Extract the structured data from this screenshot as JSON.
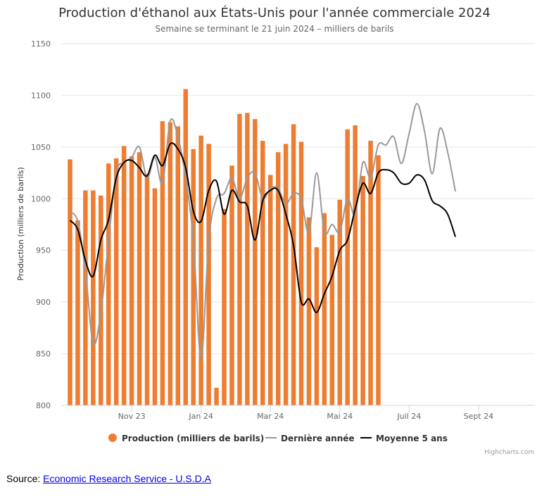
{
  "title": "Production d'éthanol aux États-Unis pour l'année commerciale 2024",
  "subtitle": "Semaine se terminant le 21 juin 2024 – milliers de barils",
  "credits": "Highcharts.com",
  "source": {
    "label": "Source:",
    "link_text": "Economic Research Service - U.S.D.A"
  },
  "colors": {
    "production": "#ed7d31",
    "last_year": "#999999",
    "avg5": "#000000"
  },
  "chart_data": {
    "type": "bar",
    "ylabel": "Production (milliers de barils)",
    "ylim": [
      800,
      1150
    ],
    "yticks": [
      800,
      850,
      900,
      950,
      1000,
      1050,
      1100,
      1150
    ],
    "xtick_labels": [
      "Nov 23",
      "Jan 24",
      "Mar 24",
      "Mai 24",
      "Juil 24",
      "Sept 24"
    ],
    "xtick_weeks": [
      8,
      17,
      26,
      35,
      44,
      53
    ],
    "legend_position": "bottom",
    "grid": true,
    "series": [
      {
        "name": "Production (milliers de barils)",
        "type": "column",
        "values": [
          1038,
          979,
          1008,
          1008,
          1003,
          1034,
          1039,
          1051,
          1041,
          1045,
          1024,
          1010,
          1075,
          1074,
          1070,
          1106,
          1048,
          1061,
          1053,
          817,
          990,
          1032,
          1082,
          1083,
          1077,
          1056,
          1023,
          1045,
          1053,
          1072,
          1055,
          982,
          953,
          986,
          965,
          999,
          1067,
          1071,
          1022,
          1056,
          1042
        ]
      },
      {
        "name": "Dernière année",
        "type": "line",
        "values": [
          987,
          978,
          930,
          860,
          890,
          960,
          1025,
          1035,
          1040,
          1050,
          1020,
          1040,
          1015,
          1075,
          1060,
          1020,
          960,
          845,
          960,
          1000,
          1005,
          1020,
          1000,
          1020,
          1025,
          1000,
          1010,
          1010,
          995,
          1005,
          1000,
          967,
          1025,
          968,
          975,
          968,
          1000,
          985,
          1035,
          1020,
          1052,
          1052,
          1060,
          1034,
          1063,
          1092,
          1065,
          1024,
          1068,
          1045,
          1007
        ]
      },
      {
        "name": "Moyenne 5 ans",
        "type": "line",
        "values": [
          979,
          970,
          940,
          925,
          960,
          980,
          1020,
          1035,
          1037,
          1030,
          1022,
          1042,
          1032,
          1053,
          1048,
          1030,
          988,
          978,
          1008,
          1017,
          985,
          1008,
          997,
          993,
          960,
          998,
          1008,
          1008,
          985,
          955,
          900,
          903,
          890,
          908,
          925,
          950,
          960,
          990,
          1015,
          1005,
          1025,
          1028,
          1025,
          1015,
          1015,
          1023,
          1018,
          998,
          993,
          985,
          963
        ]
      }
    ]
  }
}
